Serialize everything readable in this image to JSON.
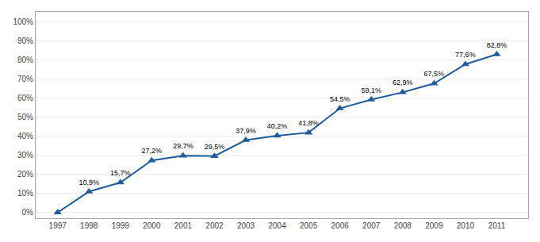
{
  "chart_data": {
    "type": "line",
    "x": [
      1997,
      1998,
      1999,
      2000,
      2001,
      2002,
      2003,
      2004,
      2005,
      2006,
      2007,
      2008,
      2009,
      2010,
      2011
    ],
    "values": [
      0.0,
      10.9,
      15.7,
      27.2,
      29.7,
      29.5,
      37.9,
      40.2,
      41.8,
      54.5,
      59.1,
      62.9,
      67.5,
      77.6,
      82.8
    ],
    "value_labels": [
      null,
      "10,9%",
      "15,7%",
      "27,2%",
      "29,7%",
      "29,5%",
      "37,9%",
      "40,2%",
      "41,8%",
      "54,5%",
      "59,1%",
      "62,9%",
      "67,5%",
      "77,6%",
      "82,8%"
    ],
    "data_labels": true,
    "color": "#1F5C9E",
    "marker": "triangle-up",
    "xlim": [
      1996.3,
      2012.0
    ],
    "xticks": [
      1997,
      1998,
      1999,
      2000,
      2001,
      2002,
      2003,
      2004,
      2005,
      2006,
      2007,
      2008,
      2009,
      2010,
      2011
    ],
    "ylim": [
      -3,
      105
    ],
    "yticks": [
      {
        "value": 0,
        "label": "0%"
      },
      {
        "value": 10,
        "label": "10%"
      },
      {
        "value": 20,
        "label": "20%"
      },
      {
        "value": 30,
        "label": "30%"
      },
      {
        "value": 40,
        "label": "40%"
      },
      {
        "value": 50,
        "label": "50%"
      },
      {
        "value": 60,
        "label": "60%"
      },
      {
        "value": 70,
        "label": "70%"
      },
      {
        "value": 80,
        "label": "80%"
      },
      {
        "value": 90,
        "label": "90%"
      },
      {
        "value": 100,
        "label": "100%"
      }
    ],
    "grid": "y"
  }
}
